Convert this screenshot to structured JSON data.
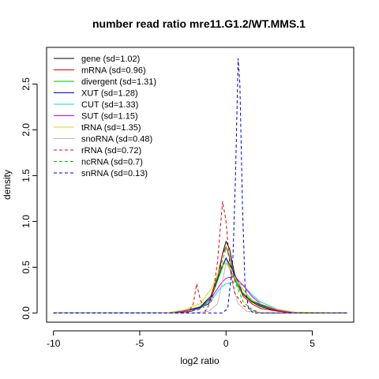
{
  "chart_data": {
    "type": "line",
    "title": "number read ratio mre11.G1.2/WT.MMS.1",
    "xlabel": "log2 ratio",
    "ylabel": "density",
    "xlim": [
      -10.4,
      7.4
    ],
    "ylim": [
      -0.1,
      2.9
    ],
    "x_ticks": [
      -10,
      -5,
      0,
      5
    ],
    "y_ticks": [
      0.0,
      0.5,
      1.0,
      1.5,
      2.0,
      2.5
    ],
    "grid": false,
    "legend_position": "top-left",
    "series": [
      {
        "name": "gene (sd=1.02)",
        "color": "#000000",
        "dash": "solid",
        "points": [
          [
            -10,
            0
          ],
          [
            -3,
            0
          ],
          [
            -2,
            0.02
          ],
          [
            -1,
            0.1
          ],
          [
            -0.5,
            0.35
          ],
          [
            -0.2,
            0.65
          ],
          [
            0,
            0.78
          ],
          [
            0.2,
            0.7
          ],
          [
            0.5,
            0.42
          ],
          [
            1,
            0.2
          ],
          [
            1.5,
            0.12
          ],
          [
            2,
            0.07
          ],
          [
            3,
            0.02
          ],
          [
            4,
            0
          ],
          [
            7,
            0
          ]
        ]
      },
      {
        "name": "mRNA (sd=0.96)",
        "color": "#DF0000",
        "dash": "solid",
        "points": [
          [
            -10,
            0
          ],
          [
            -3,
            0
          ],
          [
            -2,
            0.02
          ],
          [
            -1,
            0.12
          ],
          [
            -0.5,
            0.4
          ],
          [
            -0.2,
            0.65
          ],
          [
            0,
            0.72
          ],
          [
            0.2,
            0.62
          ],
          [
            0.5,
            0.38
          ],
          [
            1,
            0.18
          ],
          [
            1.5,
            0.1
          ],
          [
            2,
            0.05
          ],
          [
            3,
            0.02
          ],
          [
            4,
            0
          ],
          [
            7,
            0
          ]
        ]
      },
      {
        "name": "divergent (sd=1.31)",
        "color": "#00BB00",
        "dash": "solid",
        "points": [
          [
            -10,
            0
          ],
          [
            -3.5,
            0
          ],
          [
            -2.5,
            0.02
          ],
          [
            -1.5,
            0.07
          ],
          [
            -0.8,
            0.2
          ],
          [
            -0.3,
            0.45
          ],
          [
            0,
            0.6
          ],
          [
            0.3,
            0.45
          ],
          [
            0.8,
            0.25
          ],
          [
            1.5,
            0.13
          ],
          [
            2,
            0.08
          ],
          [
            3,
            0.03
          ],
          [
            4,
            0
          ],
          [
            7,
            0
          ]
        ]
      },
      {
        "name": "XUT (sd=1.28)",
        "color": "#0000CC",
        "dash": "solid",
        "points": [
          [
            -10,
            0
          ],
          [
            -3.5,
            0
          ],
          [
            -2.5,
            0.02
          ],
          [
            -1.5,
            0.06
          ],
          [
            -0.8,
            0.2
          ],
          [
            -0.3,
            0.48
          ],
          [
            0,
            0.6
          ],
          [
            0.3,
            0.5
          ],
          [
            0.8,
            0.3
          ],
          [
            1.5,
            0.14
          ],
          [
            2,
            0.09
          ],
          [
            3,
            0.03
          ],
          [
            4,
            0
          ],
          [
            7,
            0
          ]
        ]
      },
      {
        "name": "CUT (sd=1.33)",
        "color": "#00DDDD",
        "dash": "solid",
        "points": [
          [
            -10,
            0
          ],
          [
            -3.5,
            0
          ],
          [
            -2.5,
            0.02
          ],
          [
            -1.5,
            0.05
          ],
          [
            -0.8,
            0.15
          ],
          [
            -0.3,
            0.28
          ],
          [
            0,
            0.32
          ],
          [
            0.5,
            0.34
          ],
          [
            1,
            0.3
          ],
          [
            1.5,
            0.2
          ],
          [
            2,
            0.12
          ],
          [
            2.5,
            0.08
          ],
          [
            3,
            0.04
          ],
          [
            4,
            0
          ],
          [
            7,
            0
          ]
        ]
      },
      {
        "name": "SUT (sd=1.15)",
        "color": "#DD00DD",
        "dash": "solid",
        "points": [
          [
            -10,
            0
          ],
          [
            -3.5,
            0
          ],
          [
            -2.5,
            0.02
          ],
          [
            -1.5,
            0.05
          ],
          [
            -0.8,
            0.18
          ],
          [
            -0.3,
            0.32
          ],
          [
            0,
            0.38
          ],
          [
            0.5,
            0.4
          ],
          [
            1,
            0.3
          ],
          [
            1.5,
            0.18
          ],
          [
            2,
            0.1
          ],
          [
            2.5,
            0.06
          ],
          [
            3,
            0.03
          ],
          [
            4,
            0
          ],
          [
            7,
            0
          ]
        ]
      },
      {
        "name": "tRNA (sd=1.35)",
        "color": "#DDDD00",
        "dash": "solid",
        "points": [
          [
            -10,
            0
          ],
          [
            -3.5,
            0
          ],
          [
            -2.5,
            0.03
          ],
          [
            -1.5,
            0.1
          ],
          [
            -0.8,
            0.28
          ],
          [
            -0.3,
            0.5
          ],
          [
            0,
            0.55
          ],
          [
            0.3,
            0.45
          ],
          [
            0.8,
            0.3
          ],
          [
            1.5,
            0.14
          ],
          [
            2,
            0.1
          ],
          [
            3,
            0.04
          ],
          [
            4,
            0.01
          ],
          [
            7,
            0
          ]
        ]
      },
      {
        "name": "snoRNA (sd=0.48)",
        "color": "#BBBBBB",
        "dash": "solid",
        "points": [
          [
            -10,
            0
          ],
          [
            -2,
            0
          ],
          [
            -1,
            0.02
          ],
          [
            -0.5,
            0.1
          ],
          [
            -0.2,
            0.35
          ],
          [
            0,
            0.55
          ],
          [
            0.2,
            0.5
          ],
          [
            0.4,
            0.3
          ],
          [
            0.7,
            0.1
          ],
          [
            1.2,
            0.02
          ],
          [
            2,
            0
          ],
          [
            7,
            0
          ]
        ]
      },
      {
        "name": "rRNA (sd=0.72)",
        "color": "#DF0000",
        "dash": "dashed",
        "points": [
          [
            -10,
            0
          ],
          [
            -2.2,
            0
          ],
          [
            -1.9,
            0.1
          ],
          [
            -1.7,
            0.32
          ],
          [
            -1.5,
            0.15
          ],
          [
            -1.2,
            0.02
          ],
          [
            -0.8,
            0.15
          ],
          [
            -0.5,
            0.55
          ],
          [
            -0.2,
            1.22
          ],
          [
            0,
            1.0
          ],
          [
            0.2,
            0.55
          ],
          [
            0.5,
            0.22
          ],
          [
            1,
            0.08
          ],
          [
            1.5,
            0.03
          ],
          [
            2,
            0
          ],
          [
            7,
            0
          ]
        ]
      },
      {
        "name": "ncRNA (sd=0.7)",
        "color": "#00BB00",
        "dash": "dashed",
        "points": [
          [
            -10,
            0
          ],
          [
            -2.5,
            0
          ],
          [
            -1.5,
            0.04
          ],
          [
            -0.8,
            0.2
          ],
          [
            -0.3,
            0.5
          ],
          [
            0,
            0.72
          ],
          [
            0.2,
            0.6
          ],
          [
            0.5,
            0.35
          ],
          [
            1,
            0.12
          ],
          [
            1.5,
            0.04
          ],
          [
            2,
            0
          ],
          [
            7,
            0
          ]
        ]
      },
      {
        "name": "snRNA (sd=0.13)",
        "color": "#0000CC",
        "dash": "dashed",
        "points": [
          [
            -10,
            0
          ],
          [
            -0.2,
            0
          ],
          [
            0.1,
            0.05
          ],
          [
            0.4,
            0.6
          ],
          [
            0.55,
            1.5
          ],
          [
            0.7,
            2.78
          ],
          [
            0.8,
            2.5
          ],
          [
            0.95,
            1.2
          ],
          [
            1.1,
            0.3
          ],
          [
            1.3,
            0.05
          ],
          [
            1.6,
            0
          ],
          [
            7,
            0
          ]
        ]
      }
    ]
  }
}
